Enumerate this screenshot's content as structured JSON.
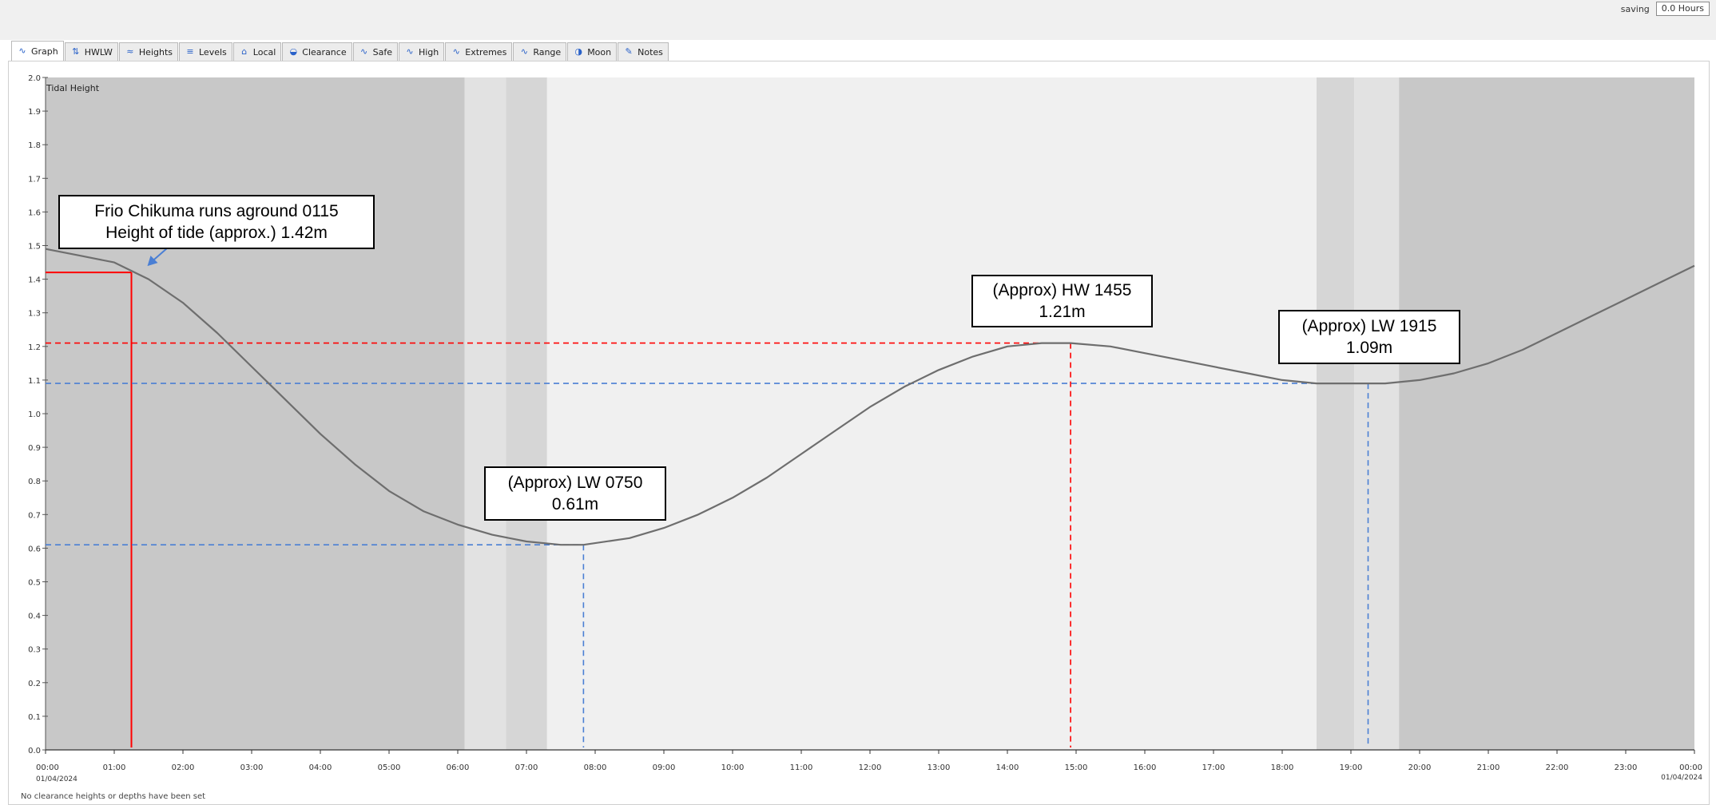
{
  "toolbar": {
    "saving_label": "saving",
    "hours_value": "0.0 Hours"
  },
  "tabs": [
    {
      "label": "Graph",
      "icon": "graph-icon",
      "active": true
    },
    {
      "label": "HWLW",
      "icon": "hwlw-icon"
    },
    {
      "label": "Heights",
      "icon": "heights-icon"
    },
    {
      "label": "Levels",
      "icon": "levels-icon"
    },
    {
      "label": "Local",
      "icon": "local-icon"
    },
    {
      "label": "Clearance",
      "icon": "clearance-icon"
    },
    {
      "label": "Safe",
      "icon": "safe-icon"
    },
    {
      "label": "High",
      "icon": "high-icon"
    },
    {
      "label": "Extremes",
      "icon": "extremes-icon"
    },
    {
      "label": "Range",
      "icon": "range-icon"
    },
    {
      "label": "Moon",
      "icon": "moon-icon"
    },
    {
      "label": "Notes",
      "icon": "notes-icon"
    }
  ],
  "chart_data": {
    "type": "line",
    "title": "Tidal Height",
    "xlabel": "",
    "ylabel": "",
    "xlim": [
      0,
      24
    ],
    "ylim": [
      0,
      2.0
    ],
    "y_ticks": [
      "0.0",
      "0.1",
      "0.2",
      "0.3",
      "0.4",
      "0.5",
      "0.6",
      "0.7",
      "0.8",
      "0.9",
      "1.0",
      "1.1",
      "1.2",
      "1.3",
      "1.4",
      "1.5",
      "1.6",
      "1.7",
      "1.8",
      "1.9",
      "2.0"
    ],
    "x_ticks": [
      "00:00",
      "01:00",
      "02:00",
      "03:00",
      "04:00",
      "05:00",
      "06:00",
      "07:00",
      "08:00",
      "09:00",
      "10:00",
      "11:00",
      "12:00",
      "13:00",
      "14:00",
      "15:00",
      "16:00",
      "17:00",
      "18:00",
      "19:00",
      "20:00",
      "21:00",
      "22:00",
      "23:00",
      "00:00"
    ],
    "x_start_date": "01/04/2024",
    "x_end_date": "01/04/2024",
    "grid": false,
    "series": [
      {
        "x": [
          0,
          0.5,
          1,
          1.5,
          2,
          2.5,
          3,
          3.5,
          4,
          4.5,
          5,
          5.5,
          6,
          6.5,
          7,
          7.5,
          7.83,
          8.5,
          9,
          9.5,
          10,
          10.5,
          11,
          11.5,
          12,
          12.5,
          13,
          13.5,
          14,
          14.5,
          14.92,
          15.5,
          16,
          16.5,
          17,
          17.5,
          18,
          18.5,
          19,
          19.25,
          19.5,
          20,
          20.5,
          21,
          21.5,
          22,
          22.5,
          23,
          23.5,
          24
        ],
        "y": [
          1.49,
          1.47,
          1.45,
          1.4,
          1.33,
          1.24,
          1.14,
          1.04,
          0.94,
          0.85,
          0.77,
          0.71,
          0.67,
          0.64,
          0.62,
          0.61,
          0.61,
          0.63,
          0.66,
          0.7,
          0.75,
          0.81,
          0.88,
          0.95,
          1.02,
          1.08,
          1.13,
          1.17,
          1.2,
          1.21,
          1.21,
          1.2,
          1.18,
          1.16,
          1.14,
          1.12,
          1.1,
          1.09,
          1.09,
          1.09,
          1.09,
          1.1,
          1.12,
          1.15,
          1.19,
          1.24,
          1.29,
          1.34,
          1.39,
          1.44
        ]
      }
    ],
    "shading": [
      {
        "from": 0,
        "to": 6.1,
        "shade": "dark"
      },
      {
        "from": 6.1,
        "to": 6.7,
        "shade": "light"
      },
      {
        "from": 6.7,
        "to": 7.3,
        "shade": "mid"
      },
      {
        "from": 7.3,
        "to": 18.5,
        "shade": "day"
      },
      {
        "from": 18.5,
        "to": 19.05,
        "shade": "mid"
      },
      {
        "from": 19.05,
        "to": 19.7,
        "shade": "light"
      },
      {
        "from": 19.7,
        "to": 24,
        "shade": "dark"
      }
    ],
    "reference_lines": [
      {
        "color": "#ff0000",
        "style": "solid",
        "x": 1.25,
        "y": 1.42
      },
      {
        "color": "#ff0000",
        "style": "dashed",
        "x": 14.92,
        "y": 1.21
      },
      {
        "color": "#4a7fd4",
        "style": "dashed",
        "x": 7.83,
        "y": 0.61
      },
      {
        "color": "#4a7fd4",
        "style": "dashed",
        "x": 19.25,
        "y": 1.09
      }
    ],
    "annotations": [
      {
        "lines": [
          "Frio Chikuma runs aground 0115",
          "Height of tide (approx.) 1.42m"
        ]
      },
      {
        "lines": [
          "(Approx) HW 1455",
          "1.21m"
        ]
      },
      {
        "lines": [
          "(Approx) LW 0750",
          "0.61m"
        ]
      },
      {
        "lines": [
          "(Approx) LW 1915",
          "1.09m"
        ]
      }
    ]
  },
  "colors": {
    "dark_shade": "#c8c8c8",
    "light_shade": "#e2e2e2",
    "mid_shade": "#d6d6d6",
    "day_shade": "#f0f0f0",
    "curve": "#6e6e6e",
    "red": "#ff0000",
    "blue": "#4a7fd4",
    "arrow": "#4a7fd4"
  },
  "footer": {
    "message": "No clearance heights or depths have been set"
  }
}
